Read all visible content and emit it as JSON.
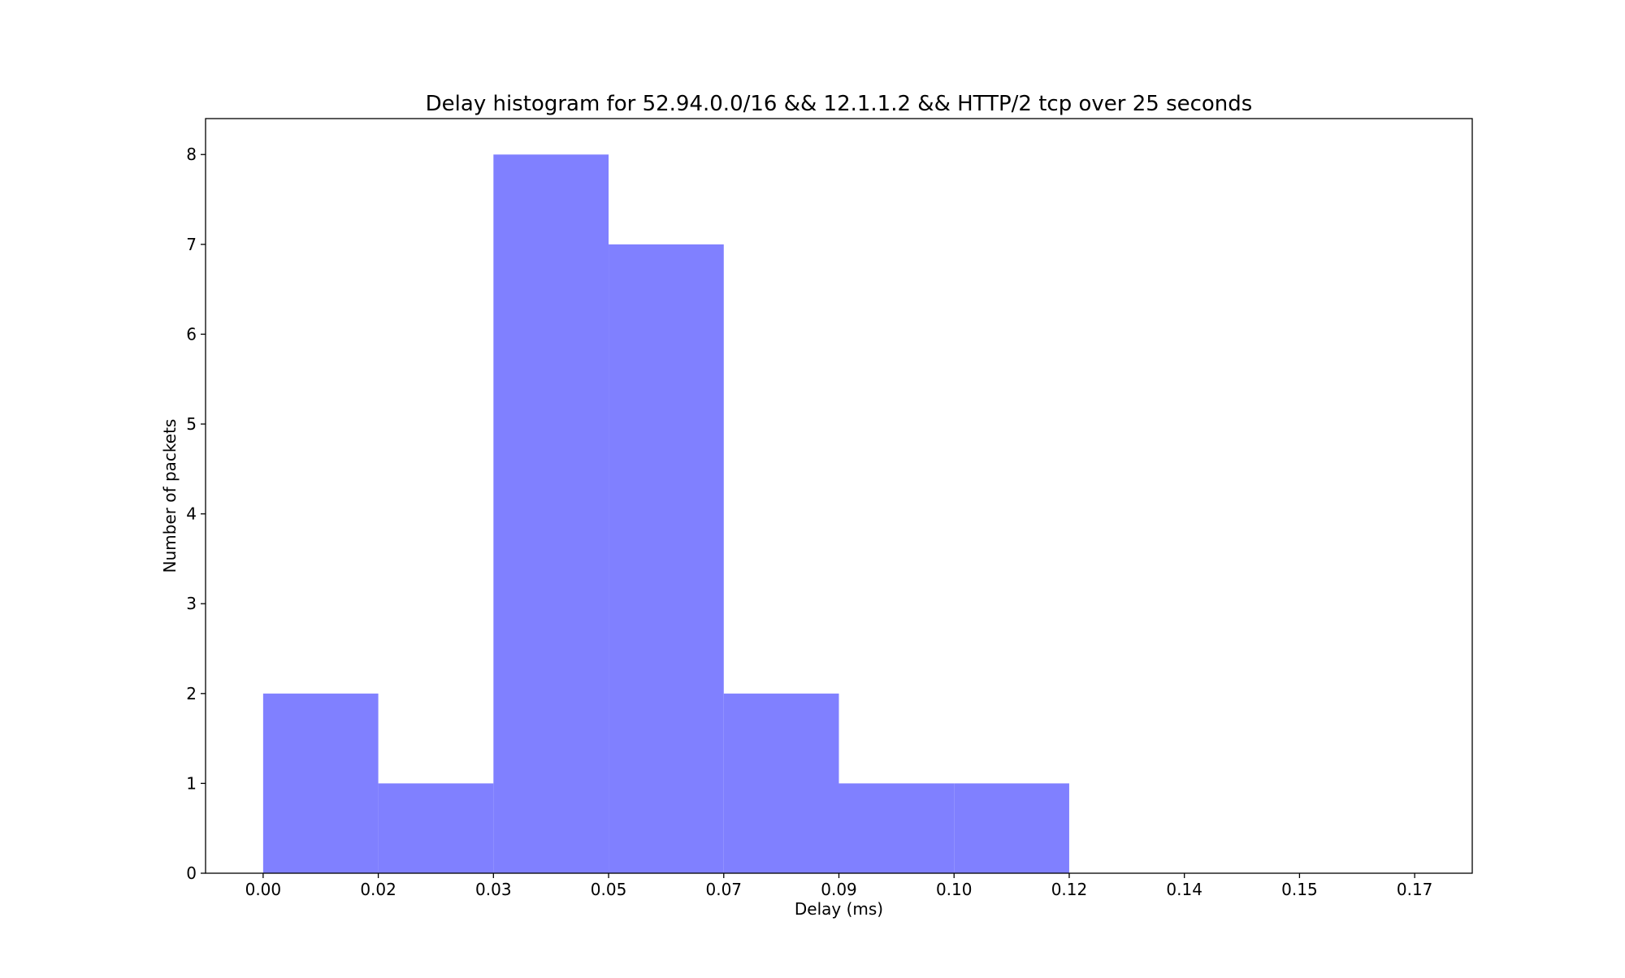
{
  "chart_data": {
    "type": "bar",
    "title": "Delay histogram for 52.94.0.0/16 && 12.1.1.2 && HTTP/2 tcp over 25 seconds",
    "xlabel": "Delay (ms)",
    "ylabel": "Number of packets",
    "bar_color": "#8080ff",
    "grid": false,
    "legend": "none",
    "xlim": [
      -0.0085,
      0.1785
    ],
    "ylim": [
      0,
      8.4
    ],
    "x_ticks": [
      0.0,
      0.017,
      0.034,
      0.051,
      0.068,
      0.085,
      0.102,
      0.119,
      0.136,
      0.153,
      0.17
    ],
    "x_tick_labels": [
      "0.00",
      "0.02",
      "0.03",
      "0.05",
      "0.07",
      "0.09",
      "0.10",
      "0.12",
      "0.14",
      "0.15",
      "0.17"
    ],
    "y_ticks": [
      0,
      1,
      2,
      3,
      4,
      5,
      6,
      7,
      8
    ],
    "y_tick_labels": [
      "0",
      "1",
      "2",
      "3",
      "4",
      "5",
      "6",
      "7",
      "8"
    ],
    "bins": [
      {
        "start": 0.0,
        "end": 0.017,
        "count": 2
      },
      {
        "start": 0.017,
        "end": 0.034,
        "count": 1
      },
      {
        "start": 0.034,
        "end": 0.051,
        "count": 8
      },
      {
        "start": 0.051,
        "end": 0.068,
        "count": 7
      },
      {
        "start": 0.068,
        "end": 0.085,
        "count": 2
      },
      {
        "start": 0.085,
        "end": 0.102,
        "count": 1
      },
      {
        "start": 0.102,
        "end": 0.119,
        "count": 1
      },
      {
        "start": 0.119,
        "end": 0.136,
        "count": 0
      },
      {
        "start": 0.136,
        "end": 0.153,
        "count": 0
      },
      {
        "start": 0.153,
        "end": 0.17,
        "count": 0
      }
    ]
  }
}
